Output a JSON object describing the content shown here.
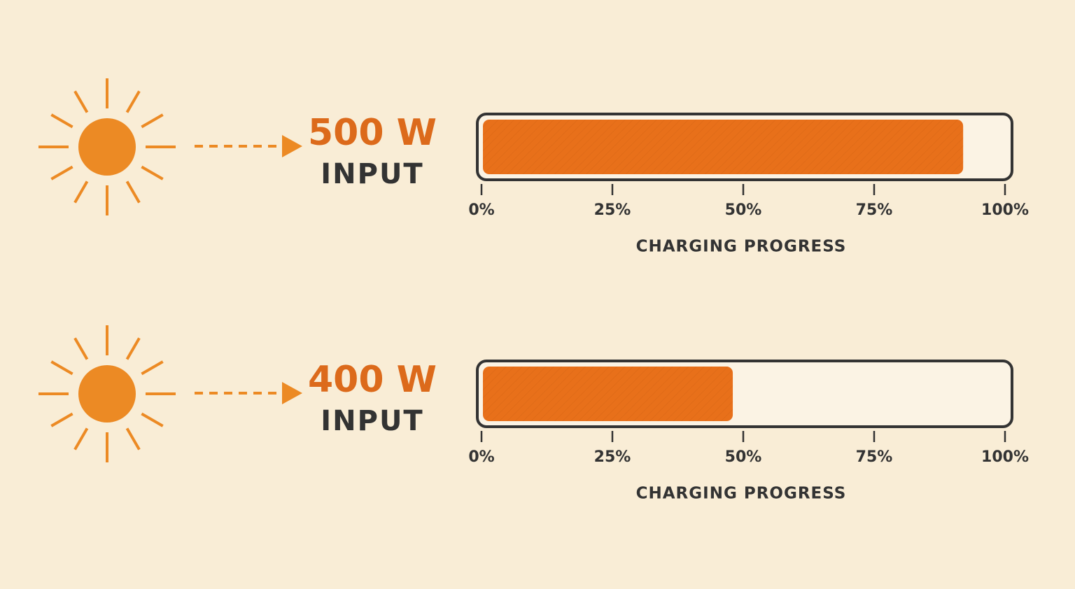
{
  "chart_data": [
    {
      "type": "bar",
      "orientation": "horizontal",
      "title": "500 W",
      "subtitle": "INPUT",
      "values": [
        92
      ],
      "color": "#e8701a",
      "xlim": [
        0,
        100
      ],
      "xticks": [
        {
          "value": 0,
          "label": "0%"
        },
        {
          "value": 25,
          "label": "25%"
        },
        {
          "value": 50,
          "label": "50%"
        },
        {
          "value": 75,
          "label": "75%"
        },
        {
          "value": 100,
          "label": "100%"
        }
      ],
      "xlabel": "CHARGING PROGRESS"
    },
    {
      "type": "bar",
      "orientation": "horizontal",
      "title": "400 W",
      "subtitle": "INPUT",
      "values": [
        48
      ],
      "color": "#e8701a",
      "xlim": [
        0,
        100
      ],
      "xticks": [
        {
          "value": 0,
          "label": "0%"
        },
        {
          "value": 25,
          "label": "25%"
        },
        {
          "value": 50,
          "label": "50%"
        },
        {
          "value": 75,
          "label": "75%"
        },
        {
          "value": 100,
          "label": "100%"
        }
      ],
      "xlabel": "CHARGING PROGRESS"
    }
  ]
}
